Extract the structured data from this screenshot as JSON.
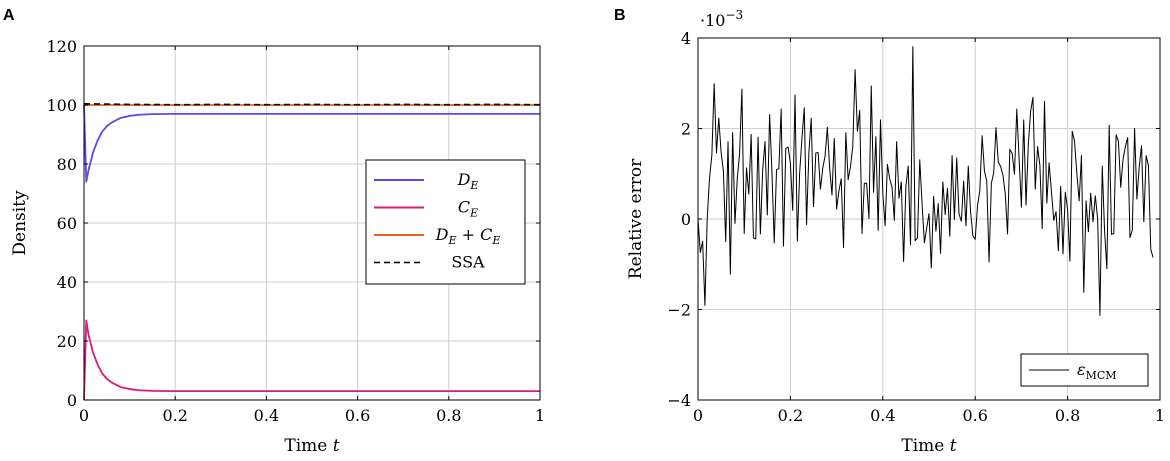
{
  "chart_data": [
    {
      "panel": "A",
      "type": "line",
      "title": "",
      "xlabel": "Time t",
      "ylabel": "Density",
      "xlim": [
        0,
        1
      ],
      "ylim": [
        0,
        120
      ],
      "xticks": [
        "0",
        "0.2",
        "0.4",
        "0.6",
        "0.8",
        "1"
      ],
      "yticks": [
        "0",
        "20",
        "40",
        "60",
        "80",
        "100",
        "120"
      ],
      "grid": true,
      "legend_position": "center-right",
      "series": [
        {
          "name": "D_E",
          "label_main": "D",
          "label_sub": "E",
          "color": "#5b48e8",
          "dashed": false,
          "x": [
            0,
            0.005,
            0.01,
            0.02,
            0.03,
            0.04,
            0.05,
            0.06,
            0.08,
            0.1,
            0.12,
            0.15,
            0.2,
            0.3,
            0.4,
            0.5,
            0.6,
            0.7,
            0.8,
            0.9,
            1.0
          ],
          "y": [
            100,
            74,
            78,
            84,
            88,
            91,
            92.8,
            94,
            95.6,
            96.3,
            96.7,
            96.9,
            97,
            97,
            97,
            97,
            97,
            97,
            97,
            97,
            97
          ]
        },
        {
          "name": "C_E",
          "label_main": "C",
          "label_sub": "E",
          "color": "#d81b7a",
          "dashed": false,
          "x": [
            0,
            0.005,
            0.01,
            0.02,
            0.03,
            0.04,
            0.05,
            0.06,
            0.08,
            0.1,
            0.12,
            0.15,
            0.2,
            0.3,
            0.4,
            0.5,
            0.6,
            0.7,
            0.8,
            0.9,
            1.0
          ],
          "y": [
            0,
            27,
            22,
            16,
            12,
            9,
            7.2,
            6,
            4.4,
            3.7,
            3.3,
            3.1,
            3,
            3,
            3,
            3,
            3,
            3,
            3,
            3,
            3
          ]
        },
        {
          "name": "D_E + C_E",
          "label_main": "D",
          "label_sub": "E",
          "label_mid": " + C",
          "label_sub2": "E",
          "color": "#e8601c",
          "dashed": false,
          "x": [
            0,
            0.1,
            0.2,
            0.3,
            0.4,
            0.5,
            0.6,
            0.7,
            0.8,
            0.9,
            1.0
          ],
          "y": [
            100,
            100,
            100,
            100,
            100,
            100,
            100,
            100,
            100,
            100,
            100
          ]
        },
        {
          "name": "SSA",
          "label_main": "SSA",
          "color": "#000000",
          "dashed": true,
          "x": [
            0,
            0.1,
            0.2,
            0.3,
            0.4,
            0.5,
            0.6,
            0.7,
            0.8,
            0.9,
            1.0
          ],
          "y": [
            100.4,
            100.2,
            100.1,
            100.2,
            100.1,
            100.2,
            100.1,
            100.2,
            100.1,
            100.2,
            100.1
          ]
        }
      ]
    },
    {
      "panel": "B",
      "type": "line",
      "title": "",
      "xlabel": "Time t",
      "ylabel": "Relative error",
      "yscale_label": "·10",
      "yscale_exp": "−3",
      "xlim": [
        0,
        1
      ],
      "ylim": [
        -4,
        4
      ],
      "xticks": [
        "0",
        "0.2",
        "0.4",
        "0.6",
        "0.8",
        "1"
      ],
      "yticks": [
        "−4",
        "−2",
        "0",
        "2",
        "4"
      ],
      "grid": true,
      "legend_position": "bottom-right",
      "series": [
        {
          "name": "ε_MCM",
          "label_main": "ε",
          "label_sub": "MCM",
          "color": "#000000",
          "x_start": 0,
          "x_step": 0.005,
          "values": [
            0.0,
            -0.74,
            -0.49,
            -1.91,
            0.03,
            0.91,
            1.41,
            2.99,
            1.46,
            2.23,
            1.48,
            1.05,
            -0.5,
            1.71,
            -1.22,
            1.91,
            -0.1,
            0.89,
            1.44,
            2.87,
            -0.32,
            1.13,
            0.55,
            1.87,
            -0.42,
            -0.44,
            1.81,
            -0.33,
            1.08,
            1.71,
            0.09,
            2.31,
            1.05,
            -0.53,
            1.09,
            1.11,
            2.43,
            -0.6,
            1.56,
            1.59,
            1.23,
            0.19,
            2.74,
            -0.49,
            1.02,
            1.78,
            2.46,
            -0.12,
            1.47,
            2.23,
            0.27,
            1.46,
            1.47,
            0.66,
            1.12,
            1.39,
            2.03,
            1.12,
            0.53,
            1.78,
            0.22,
            0.62,
            0.89,
            -0.63,
            1.91,
            0.87,
            1.15,
            1.6,
            3.3,
            1.94,
            2.4,
            -0.32,
            0.79,
            0.79,
            0.01,
            2.94,
            0.59,
            1.82,
            -0.25,
            2.19,
            0.57,
            -0.15,
            1.21,
            0.89,
            0.7,
            -0.03,
            1.71,
            0.46,
            0.82,
            -0.94,
            0.72,
            1.17,
            -0.57,
            3.81,
            -0.48,
            -0.42,
            1.31,
            0.34,
            -0.53,
            -0.2,
            0.12,
            -1.08,
            0.5,
            -0.27,
            0.34,
            -0.76,
            0.82,
            0.1,
            0.68,
            -0.38,
            1.4,
            -0.01,
            1.35,
            0.11,
            -0.05,
            0.84,
            -0.15,
            1.17,
            0.16,
            -0.37,
            -0.45,
            0.29,
            0.63,
            1.84,
            1.06,
            0.84,
            -0.95,
            0.79,
            1.02,
            2.02,
            1.26,
            1.16,
            0.97,
            0.56,
            -0.33,
            1.54,
            1.45,
            0.99,
            2.43,
            1.33,
            0.26,
            2.19,
            0.31,
            1.65,
            2.38,
            2.69,
            0.66,
            1.6,
            1.19,
            -0.21,
            2.6,
            0.35,
            1.24,
            0.61,
            -0.03,
            0.16,
            -0.7,
            0.72,
            -0.77,
            0.59,
            0.21,
            -0.93,
            1.94,
            1.72,
            1.01,
            0.4,
            1.4,
            -1.62,
            0.4,
            -0.28,
            0.57,
            -0.06,
            0.51,
            0.01,
            -2.13,
            1.17,
            -0.26,
            -1.1,
            2.07,
            -0.34,
            -0.32,
            1.86,
            1.72,
            0.7,
            1.32,
            1.6,
            1.8,
            -0.41,
            -0.25,
            2.0,
            0.44,
            1.15,
            1.62,
            -0.06,
            1.4,
            1.18,
            -0.67,
            -0.85
          ]
        }
      ]
    }
  ]
}
